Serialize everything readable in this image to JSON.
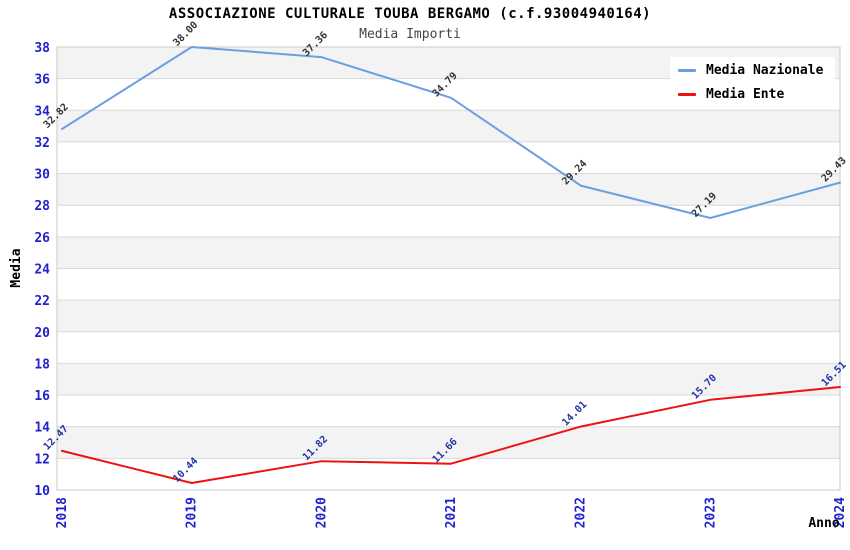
{
  "header": {
    "title": "ASSOCIAZIONE CULTURALE TOUBA BERGAMO (c.f.93004940164)",
    "subtitle": "Media Importi"
  },
  "chart_data": {
    "type": "line",
    "x": [
      "2018",
      "2019",
      "2020",
      "2021",
      "2022",
      "2023",
      "2024"
    ],
    "series": [
      {
        "name": "Media Nazionale",
        "color": "#6a9fe0",
        "label_color": "#333333",
        "values": [
          32.82,
          38.0,
          37.36,
          34.79,
          29.24,
          27.19,
          29.43
        ]
      },
      {
        "name": "Media Ente",
        "color": "#ee1111",
        "label_color": "#2233aa",
        "values": [
          12.47,
          10.44,
          11.82,
          11.66,
          14.01,
          15.7,
          16.51
        ]
      }
    ],
    "xlabel": "Anno",
    "ylabel": "Media",
    "ylim": [
      10,
      38
    ],
    "ytick_step": 2,
    "grid": true,
    "legend_position": "top-right",
    "colors": {
      "tick_label": "#2222cc",
      "band_gray": "#f3f3f3",
      "band_white": "#ffffff",
      "gridline": "#d9d9d9",
      "plot_border": "#c9c9c9",
      "axis_title": "#000000"
    }
  }
}
